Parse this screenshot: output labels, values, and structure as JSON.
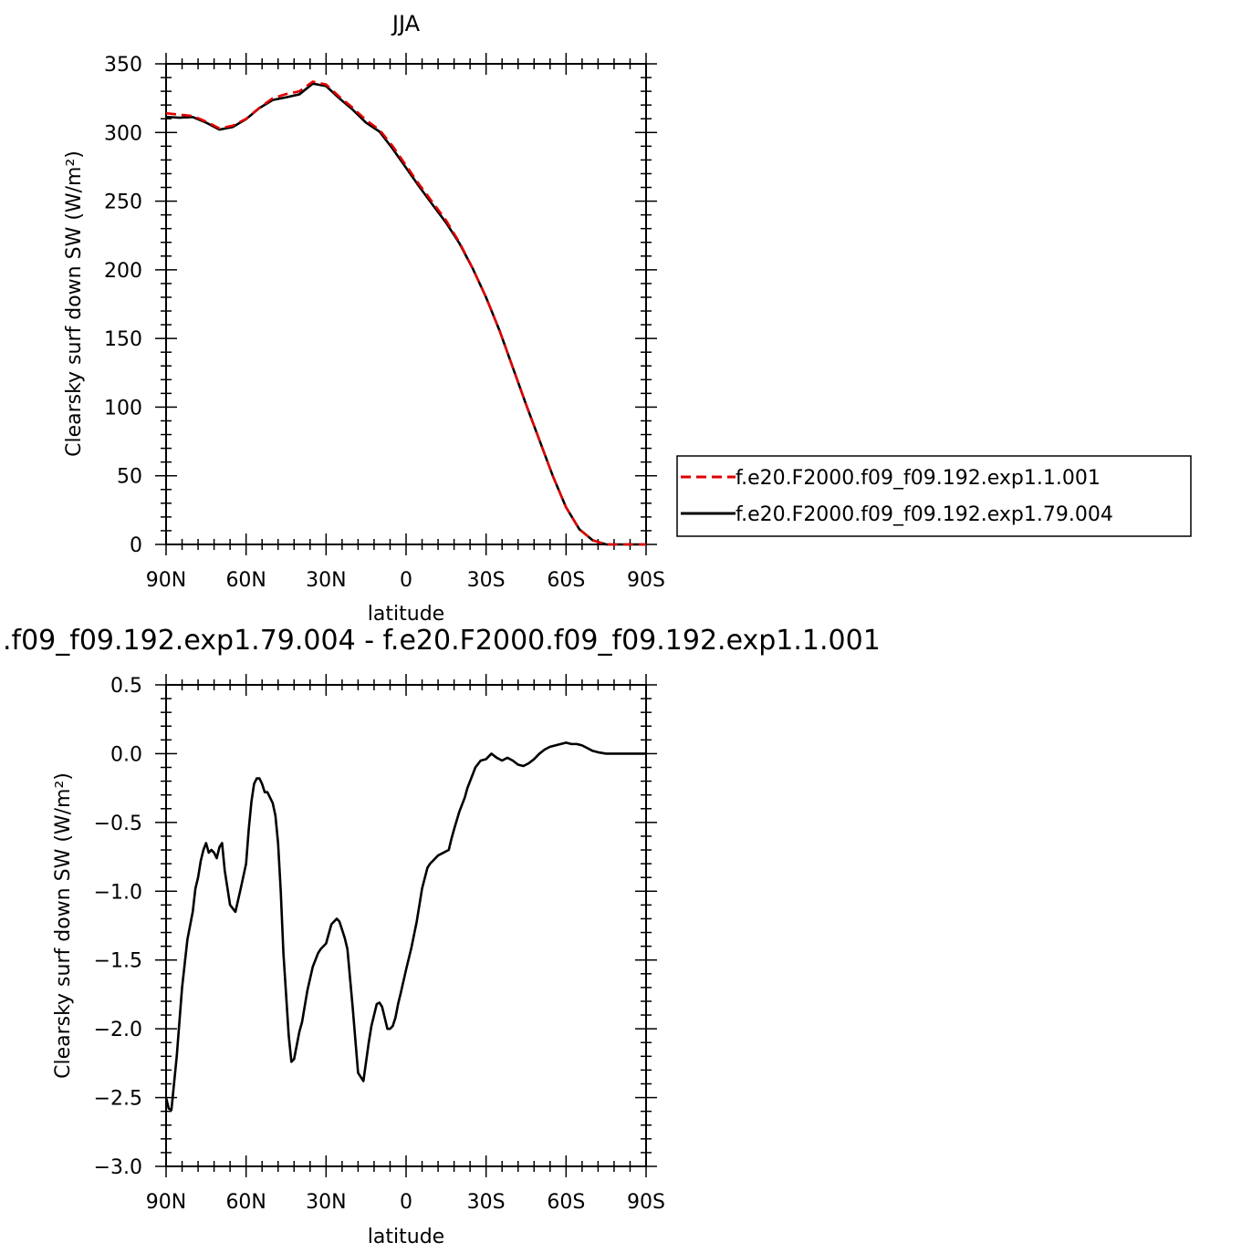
{
  "chart_data": [
    {
      "type": "line",
      "title": "JJA",
      "xlabel": "latitude",
      "ylabel": "Clearsky surf down SW (W/m²)",
      "xlim": [
        90,
        -90
      ],
      "ylim": [
        0,
        350
      ],
      "x_ticks": [
        {
          "value": 90,
          "label": "90N"
        },
        {
          "value": 60,
          "label": "60N"
        },
        {
          "value": 30,
          "label": "30N"
        },
        {
          "value": 0,
          "label": "0"
        },
        {
          "value": -30,
          "label": "30S"
        },
        {
          "value": -60,
          "label": "60S"
        },
        {
          "value": -90,
          "label": "90S"
        }
      ],
      "y_ticks": [
        {
          "value": 0,
          "label": "0"
        },
        {
          "value": 50,
          "label": "50"
        },
        {
          "value": 100,
          "label": "100"
        },
        {
          "value": 150,
          "label": "150"
        },
        {
          "value": 200,
          "label": "200"
        },
        {
          "value": 250,
          "label": "250"
        },
        {
          "value": 300,
          "label": "300"
        },
        {
          "value": 350,
          "label": "350"
        }
      ],
      "legend_position": "right",
      "series": [
        {
          "name": "f.e20.F2000.f09_f09.192.exp1.1.001",
          "color": "#e00000",
          "dash": true,
          "x": [
            90,
            85,
            80,
            75,
            70,
            65,
            60,
            55,
            50,
            45,
            40,
            35,
            30,
            25,
            20,
            15,
            10,
            5,
            0,
            -5,
            -10,
            -15,
            -20,
            -25,
            -30,
            -35,
            -40,
            -45,
            -50,
            -55,
            -60,
            -65,
            -70,
            -75,
            -80,
            -85,
            -90
          ],
          "y": [
            314,
            313,
            312,
            308,
            303,
            305,
            310,
            318,
            325,
            328,
            330,
            337,
            335,
            326,
            318,
            309,
            302,
            290,
            276,
            262,
            249,
            236,
            220,
            201,
            180,
            156,
            129,
            102,
            76,
            50,
            27,
            11,
            3,
            0,
            0,
            0,
            0
          ]
        },
        {
          "name": "f.e20.F2000.f09_f09.192.exp1.79.004",
          "color": "#000000",
          "dash": false,
          "x": [
            90,
            85,
            80,
            75,
            70,
            65,
            60,
            55,
            50,
            45,
            40,
            35,
            30,
            25,
            20,
            15,
            10,
            5,
            0,
            -5,
            -10,
            -15,
            -20,
            -25,
            -30,
            -35,
            -40,
            -45,
            -50,
            -55,
            -60,
            -65,
            -70,
            -75,
            -80,
            -85,
            -90
          ],
          "y": [
            311.4,
            310.8,
            311.3,
            307.2,
            302.1,
            304.0,
            309.7,
            317.8,
            323.7,
            325.6,
            327.8,
            335.6,
            333.8,
            324.8,
            316.6,
            307.1,
            300.7,
            288.1,
            274.3,
            260.4,
            247.2,
            234.3,
            219.3,
            200.9,
            179.9,
            156.0,
            129.0,
            101.9,
            76.0,
            50.0,
            27.0,
            11.0,
            3.0,
            0.0,
            0.0,
            0.0,
            0.0
          ]
        }
      ]
    },
    {
      "type": "line",
      "title": ".f09_f09.192.exp1.79.004 - f.e20.F2000.f09_f09.192.exp1.1.001",
      "xlabel": "latitude",
      "ylabel": "Clearsky surf down SW (W/m²)",
      "xlim": [
        90,
        -90
      ],
      "ylim": [
        -3.0,
        0.5
      ],
      "x_ticks": [
        {
          "value": 90,
          "label": "90N"
        },
        {
          "value": 60,
          "label": "60N"
        },
        {
          "value": 30,
          "label": "30N"
        },
        {
          "value": 0,
          "label": "0"
        },
        {
          "value": -30,
          "label": "30S"
        },
        {
          "value": -60,
          "label": "60S"
        },
        {
          "value": -90,
          "label": "90S"
        }
      ],
      "y_ticks": [
        {
          "value": 0.5,
          "label": "0.5"
        },
        {
          "value": 0.0,
          "label": "0.0"
        },
        {
          "value": -0.5,
          "label": "−0.5"
        },
        {
          "value": -1.0,
          "label": "−1.0"
        },
        {
          "value": -1.5,
          "label": "−1.5"
        },
        {
          "value": -2.0,
          "label": "−2.0"
        },
        {
          "value": -2.5,
          "label": "−2.5"
        },
        {
          "value": -3.0,
          "label": "−3.0"
        }
      ],
      "series": [
        {
          "color": "#000000",
          "dash": false,
          "x": [
            90,
            89,
            88,
            86,
            84,
            82,
            80,
            79,
            78,
            77,
            76,
            75,
            74,
            73,
            72,
            71,
            70,
            69,
            68,
            66,
            64,
            62,
            60,
            59,
            58,
            57,
            56,
            55,
            54,
            53,
            52,
            51,
            50,
            49,
            48,
            47,
            46,
            44,
            43,
            42,
            41,
            40,
            39,
            37,
            35,
            33,
            32,
            30,
            28,
            27,
            26,
            25,
            24,
            23,
            22,
            20,
            18,
            16,
            14,
            13,
            12,
            11,
            10,
            9,
            8,
            7,
            6,
            5,
            4,
            3,
            2,
            0,
            -2,
            -4,
            -6,
            -8,
            -9,
            -10,
            -12,
            -14,
            -16,
            -17,
            -18,
            -20,
            -22,
            -23,
            -24,
            -26,
            -28,
            -30,
            -32,
            -34,
            -36,
            -38,
            -40,
            -42,
            -44,
            -46,
            -48,
            -50,
            -52,
            -54,
            -56,
            -58,
            -60,
            -62,
            -64,
            -66,
            -68,
            -70,
            -72,
            -75,
            -80,
            -85,
            -90
          ],
          "y": [
            -2.5,
            -2.58,
            -2.59,
            -2.2,
            -1.7,
            -1.35,
            -1.15,
            -0.98,
            -0.9,
            -0.78,
            -0.7,
            -0.65,
            -0.72,
            -0.7,
            -0.72,
            -0.76,
            -0.68,
            -0.65,
            -0.85,
            -1.1,
            -1.15,
            -0.98,
            -0.8,
            -0.55,
            -0.35,
            -0.22,
            -0.18,
            -0.18,
            -0.22,
            -0.28,
            -0.28,
            -0.32,
            -0.36,
            -0.45,
            -0.65,
            -1.0,
            -1.45,
            -2.05,
            -2.24,
            -2.22,
            -2.12,
            -2.02,
            -1.95,
            -1.72,
            -1.55,
            -1.45,
            -1.42,
            -1.38,
            -1.24,
            -1.22,
            -1.2,
            -1.22,
            -1.28,
            -1.34,
            -1.42,
            -1.85,
            -2.32,
            -2.38,
            -2.1,
            -1.98,
            -1.9,
            -1.82,
            -1.81,
            -1.84,
            -1.92,
            -2.0,
            -2.0,
            -1.98,
            -1.92,
            -1.82,
            -1.74,
            -1.57,
            -1.41,
            -1.22,
            -0.98,
            -0.83,
            -0.8,
            -0.78,
            -0.74,
            -0.72,
            -0.7,
            -0.62,
            -0.55,
            -0.42,
            -0.32,
            -0.25,
            -0.2,
            -0.1,
            -0.05,
            -0.04,
            0.0,
            -0.03,
            -0.05,
            -0.03,
            -0.05,
            -0.08,
            -0.09,
            -0.07,
            -0.04,
            0.0,
            0.03,
            0.05,
            0.06,
            0.07,
            0.08,
            0.07,
            0.07,
            0.06,
            0.04,
            0.02,
            0.01,
            0.0,
            0.0,
            0.0,
            0.0
          ]
        }
      ]
    }
  ]
}
